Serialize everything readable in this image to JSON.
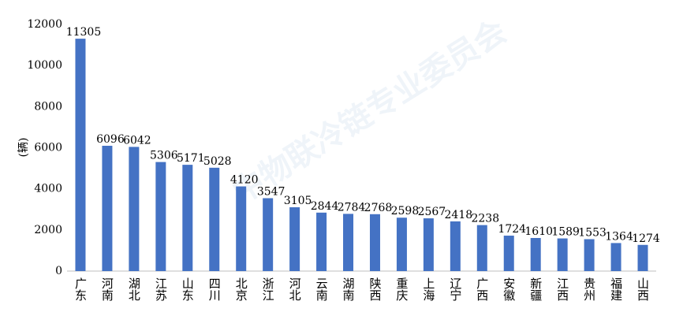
{
  "chart_data": {
    "type": "bar",
    "watermark": "中物联冷链专业委员会",
    "y_label": "(辆)",
    "categories": [
      "广东",
      "河南",
      "湖北",
      "江苏",
      "山东",
      "四川",
      "北京",
      "浙江",
      "河北",
      "云南",
      "湖南",
      "陕西",
      "重庆",
      "上海",
      "辽宁",
      "广西",
      "安徽",
      "新疆",
      "江西",
      "贵州",
      "福建",
      "山西"
    ],
    "values": [
      11305,
      6096,
      6042,
      5306,
      5171,
      5028,
      4120,
      3547,
      3105,
      2844,
      2784,
      2768,
      2598,
      2567,
      2418,
      2238,
      1724,
      1610,
      1589,
      1553,
      1364,
      1274
    ],
    "color": "#4472c4",
    "ylim": [
      0,
      12000
    ],
    "yticks": [
      0,
      2000,
      4000,
      6000,
      8000,
      10000,
      12000
    ],
    "grid": false
  }
}
